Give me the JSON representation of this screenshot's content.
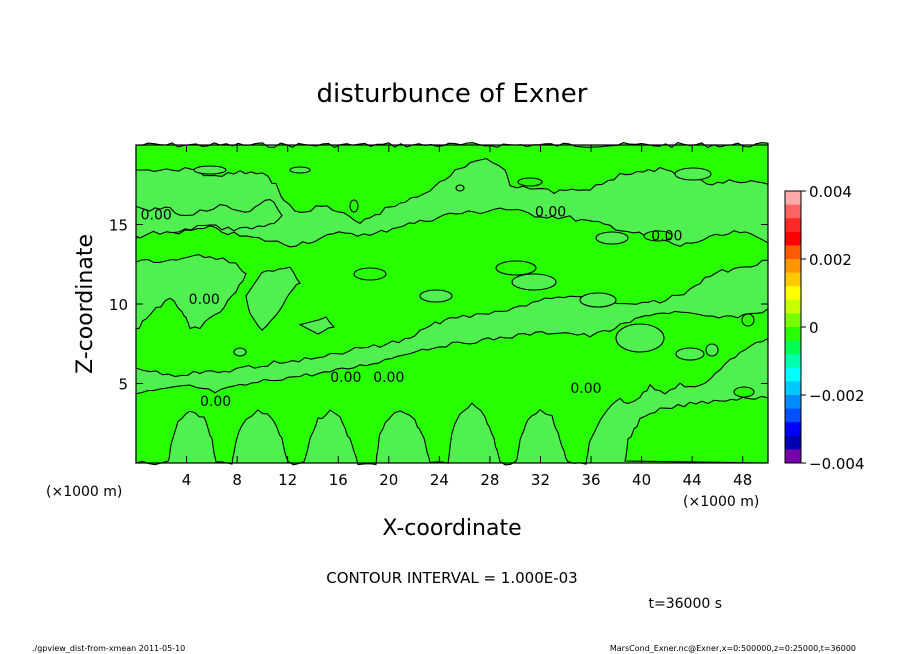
{
  "chart_data": {
    "type": "heatmap",
    "subtype": "contour",
    "title": "disturbunce of Exner",
    "xlabel": "X-coordinate",
    "ylabel": "Z-coordinate",
    "x_unit_note": "(×1000 m)",
    "y_unit_note": "(×1000 m)",
    "xlim": [
      0,
      50
    ],
    "ylim": [
      0,
      20
    ],
    "x_ticks": [
      4,
      8,
      12,
      16,
      20,
      24,
      28,
      32,
      36,
      40,
      44,
      48
    ],
    "y_ticks": [
      5,
      10,
      15
    ],
    "grid": false,
    "contour_interval_text": "CONTOUR INTERVAL = 1.000E-03",
    "time_text": "t=36000 s",
    "contour_labels": [
      {
        "text": "0.00",
        "x": 1.6,
        "y": 15.3
      },
      {
        "text": "0.00",
        "x": 5.4,
        "y": 10.0
      },
      {
        "text": "0.00",
        "x": 6.3,
        "y": 3.6
      },
      {
        "text": "0.00",
        "x": 16.6,
        "y": 5.1
      },
      {
        "text": "0.00",
        "x": 20.0,
        "y": 5.1
      },
      {
        "text": "0.00",
        "x": 32.8,
        "y": 15.5
      },
      {
        "text": "0.00",
        "x": 35.6,
        "y": 4.4
      },
      {
        "text": "0.00",
        "x": 42.0,
        "y": 14.0
      }
    ],
    "colorbar": {
      "min": -0.004,
      "max": 0.004,
      "tick_labels": [
        {
          "value": 0.004,
          "label": "0.004"
        },
        {
          "value": 0.002,
          "label": "0.002"
        },
        {
          "value": 0,
          "label": "0"
        },
        {
          "value": -0.002,
          "label": "−0.002"
        },
        {
          "value": -0.004,
          "label": "−0.004"
        }
      ],
      "colors_top_to_bottom": [
        "#ffaaaa",
        "#ff6464",
        "#ff2828",
        "#ff0000",
        "#ff5a00",
        "#ff9600",
        "#ffc800",
        "#ffff00",
        "#c8ff00",
        "#78ff00",
        "#28ff00",
        "#00ff50",
        "#00ffaa",
        "#00ffff",
        "#00c8ff",
        "#008cff",
        "#0050ff",
        "#0000ff",
        "#0000b4",
        "#7800aa"
      ],
      "dominant_fill": "#28ff00",
      "negative_fill": "#50f050"
    }
  },
  "footer": {
    "left": "./gpview_dist-from-xmean  2011-05-10",
    "right": "MarsCond_Exner.nc@Exner,x=0:500000,z=0:25000,t=36000"
  }
}
